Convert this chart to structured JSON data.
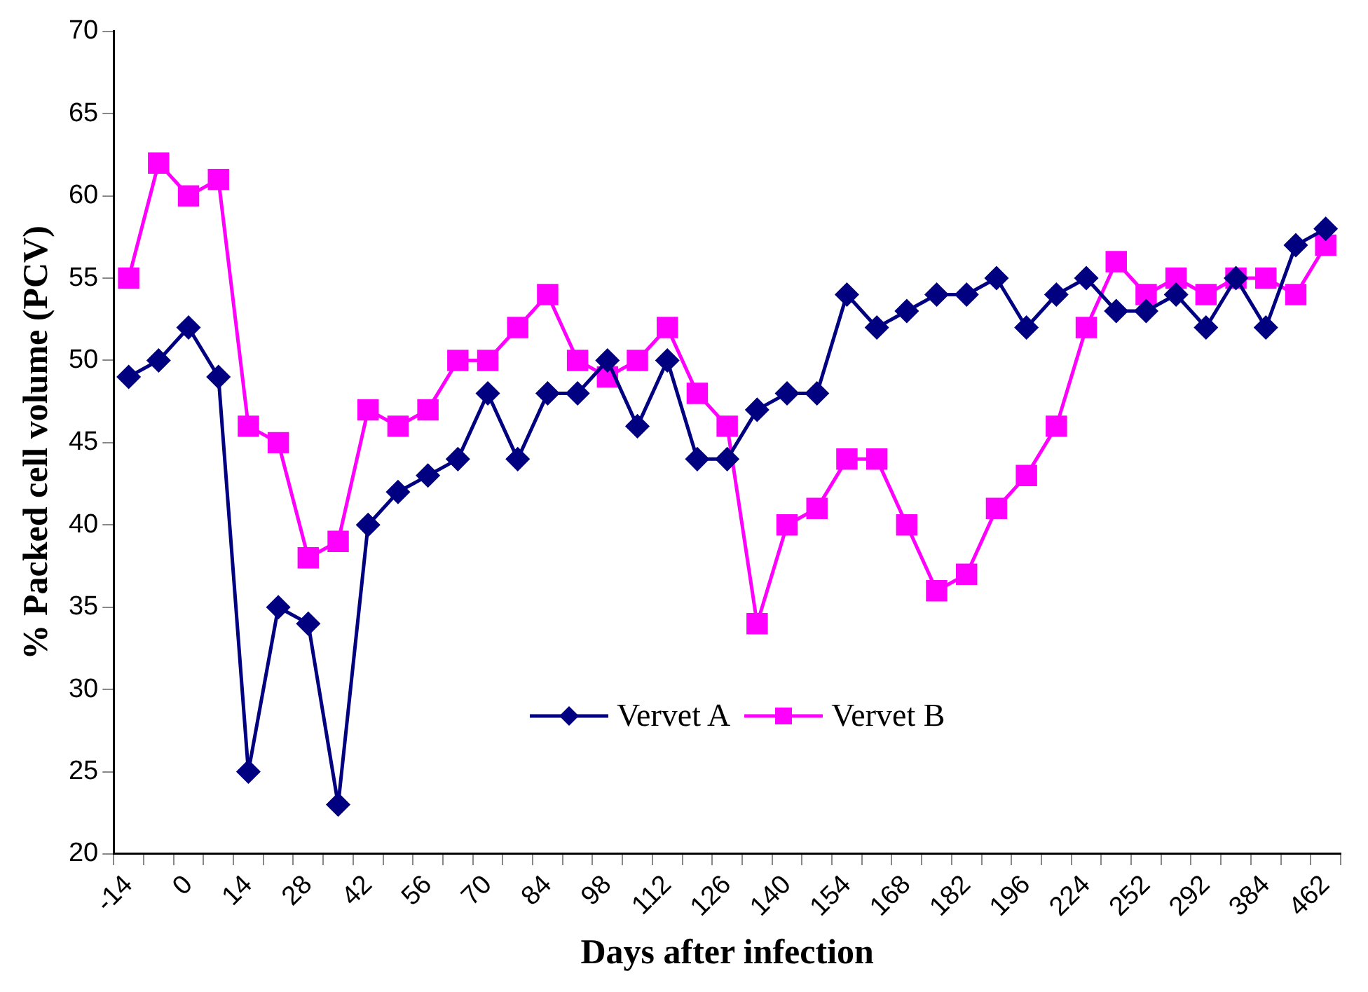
{
  "chart_data": {
    "type": "line",
    "xlabel": "Days after infection",
    "ylabel": "% Packed cell volume (PCV)",
    "categories": [
      "-14",
      null,
      "0",
      null,
      "14",
      null,
      "28",
      null,
      "42",
      null,
      "56",
      null,
      "70",
      null,
      "84",
      null,
      "98",
      null,
      "112",
      null,
      "126",
      null,
      "140",
      null,
      "154",
      null,
      "168",
      null,
      "182",
      null,
      "196",
      null,
      "224",
      null,
      "252",
      null,
      "292",
      null,
      "384",
      null,
      "462"
    ],
    "series": [
      {
        "name": "Vervet A",
        "color": "#000080",
        "marker": "diamond",
        "values": [
          49,
          50,
          52,
          49,
          25,
          35,
          34,
          23,
          40,
          42,
          43,
          44,
          48,
          44,
          48,
          48,
          50,
          46,
          50,
          44,
          44,
          47,
          48,
          48,
          54,
          52,
          53,
          54,
          54,
          55,
          52,
          54,
          55,
          53,
          53,
          54,
          52,
          55,
          52,
          57,
          58
        ]
      },
      {
        "name": "Vervet B",
        "color": "#ff00ff",
        "marker": "square",
        "values": [
          55,
          62,
          60,
          61,
          46,
          45,
          38,
          39,
          47,
          46,
          47,
          50,
          50,
          52,
          54,
          50,
          49,
          50,
          52,
          48,
          46,
          34,
          40,
          41,
          44,
          44,
          40,
          36,
          37,
          41,
          43,
          46,
          52,
          56,
          54,
          55,
          54,
          55,
          55,
          54,
          57
        ]
      }
    ],
    "ylim": [
      20,
      70
    ],
    "yticks": [
      20,
      25,
      30,
      35,
      40,
      45,
      50,
      55,
      60,
      65,
      70
    ],
    "grid": false,
    "legend": "bottom",
    "line_style": "solid"
  }
}
